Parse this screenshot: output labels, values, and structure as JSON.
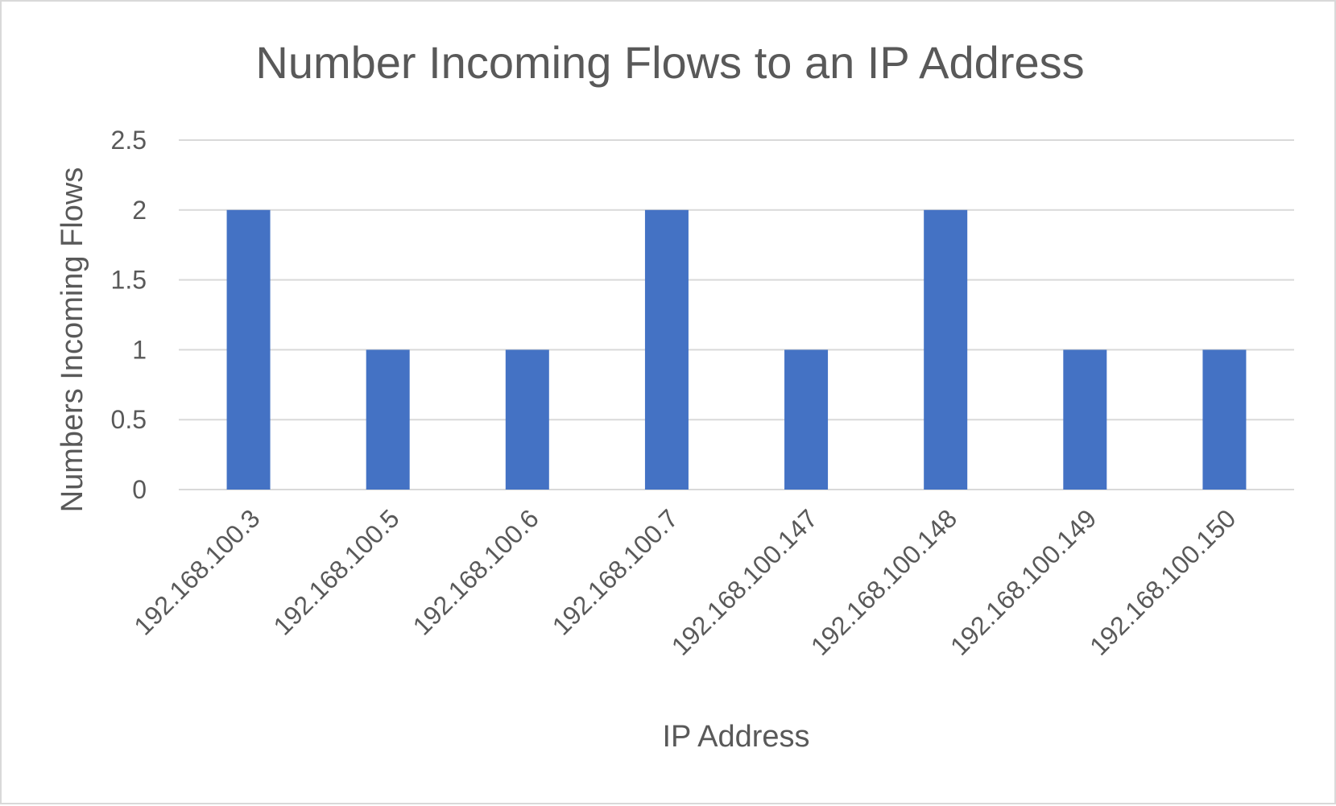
{
  "chart_data": {
    "type": "bar",
    "title": "Number Incoming Flows to an IP Address",
    "xlabel": "IP Address",
    "ylabel": "Numbers Incoming Flows",
    "categories": [
      "192.168.100.3",
      "192.168.100.5",
      "192.168.100.6",
      "192.168.100.7",
      "192.168.100.147",
      "192.168.100.148",
      "192.168.100.149",
      "192.168.100.150"
    ],
    "values": [
      2,
      1,
      1,
      2,
      1,
      2,
      1,
      1
    ],
    "ylim": [
      0,
      2.5
    ],
    "yticks": [
      "0",
      "0.5",
      "1",
      "1.5",
      "2",
      "2.5"
    ],
    "grid": true,
    "legend": "none",
    "bar_color": "#4472C4"
  }
}
